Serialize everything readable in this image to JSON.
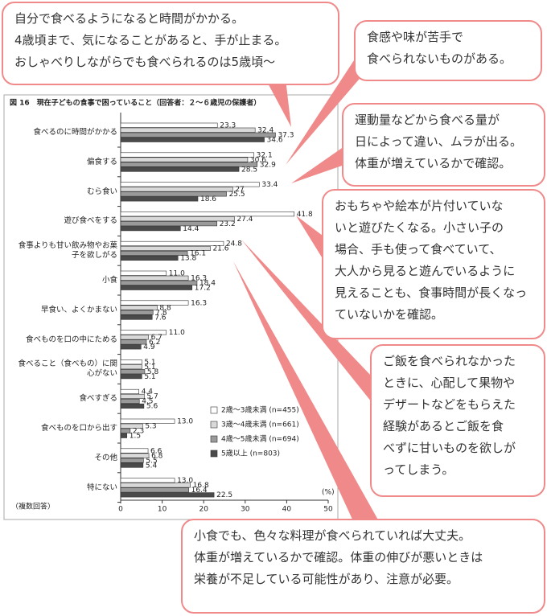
{
  "chart_data": {
    "type": "hbar",
    "title": "図 16　現在子どもの食事で困っていること（回答者：２～６歳児の保護者）",
    "note": "（複数回答）",
    "unit": "(%)",
    "categories": [
      "食べるのに時間がかかる",
      "偏食する",
      "むら食い",
      "遊び食べをする",
      "食事よりも甘い飲み物やお菓子を欲しがる",
      "小食",
      "早食い、よくかまない",
      "食べものを口の中にためる",
      "食べること（食べもの）に関心がない",
      "食べすぎる",
      "食べものを口から出す",
      "その他",
      "特にない"
    ],
    "series": [
      {
        "name": "2歳～3歳未満 (n=455)",
        "color": "#ffffff",
        "values": [
          23.3,
          32.1,
          33.4,
          41.8,
          24.8,
          11.0,
          16.3,
          11.0,
          5.1,
          4.4,
          13.0,
          6.6,
          13.0
        ],
        "value_labels": [
          "23.3",
          "32.1",
          "33.4",
          "41.8",
          "24.8",
          "11.0",
          "16.3",
          "11.0",
          "5.1",
          "4.4",
          "13.0",
          "6.6",
          "13.0"
        ]
      },
      {
        "name": "3歳～4歳未満 (n=661)",
        "color": "#d9d9d9",
        "values": [
          32.4,
          30.6,
          27,
          27.4,
          21.6,
          16.3,
          8.8,
          6.7,
          5.1,
          5.7,
          5.3,
          6.8,
          16.8
        ],
        "value_labels": [
          "32.4",
          "30.6",
          "27",
          "27.4",
          "21.6",
          "16.3",
          "8.8",
          "6.7",
          "5.1",
          "5.7",
          "5.3",
          "6.8",
          "16.8"
        ]
      },
      {
        "name": "4歳～5歳未満 (n=694)",
        "color": "#9a9a9a",
        "values": [
          37.3,
          32.9,
          25.5,
          23.2,
          16.1,
          18.4,
          7.8,
          6.2,
          5.8,
          4.5,
          2.3,
          5.5,
          16.4
        ],
        "value_labels": [
          "37.3",
          "32.9",
          "25.5",
          "23.2",
          "16.1",
          "18.4",
          "7.8",
          "6.2",
          "5.8",
          "4.5",
          "2.3",
          "5.5",
          "16.4"
        ]
      },
      {
        "name": "5歳以上 (n=803)",
        "color": "#4a4a4a",
        "values": [
          34.6,
          28.5,
          18.6,
          14.4,
          13.8,
          17.2,
          7.6,
          4.9,
          5.1,
          5.6,
          1.5,
          5.4,
          22.5
        ],
        "value_labels": [
          "34.6",
          "28.5",
          "18.6",
          "14.4",
          "13.8",
          "17.2",
          "7.6",
          "4.9",
          "5.1",
          "5.6",
          "1.5",
          "5.4",
          "22.5"
        ]
      }
    ],
    "xlim": [
      0,
      50
    ],
    "xticks": [
      0,
      10,
      20,
      30,
      40,
      50
    ],
    "grid": false
  },
  "callouts": [
    {
      "lines": [
        "自分で食べるようになると時間がかかる。",
        "4歳頃まで、気になることがあると、手が止まる。",
        "おしゃべりしながらでも食べられるのは5歳頃～"
      ]
    },
    {
      "lines": [
        "食感や味が苦手で",
        "食べられないものがある。"
      ]
    },
    {
      "lines": [
        "運動量などから食べる量が",
        "日によって違い、ムラが出る。",
        "体重が増えているかで確認。"
      ]
    },
    {
      "lines": [
        "おもちゃや絵本が片付いていな",
        "いと遊びたくなる。小さい子の",
        "場合、手も使って食べていて、",
        "大人から見ると遊んでいるように",
        "見えることも、食事時間が長くなっ",
        "ていないかを確認。"
      ]
    },
    {
      "lines": [
        "ご飯を食べられなかった",
        "ときに、心配して果物や",
        "デザートなどをもらえた",
        "経験があるとご飯を食",
        "べずに甘いものを欲しが",
        "ってしまう。"
      ]
    },
    {
      "lines": [
        "小食でも、色々な料理が食べられていれば大丈夫。",
        "体重が増えているかで確認。体重の伸びが悪いときは",
        "栄養が不足している可能性があり、注意が必要。"
      ]
    }
  ]
}
